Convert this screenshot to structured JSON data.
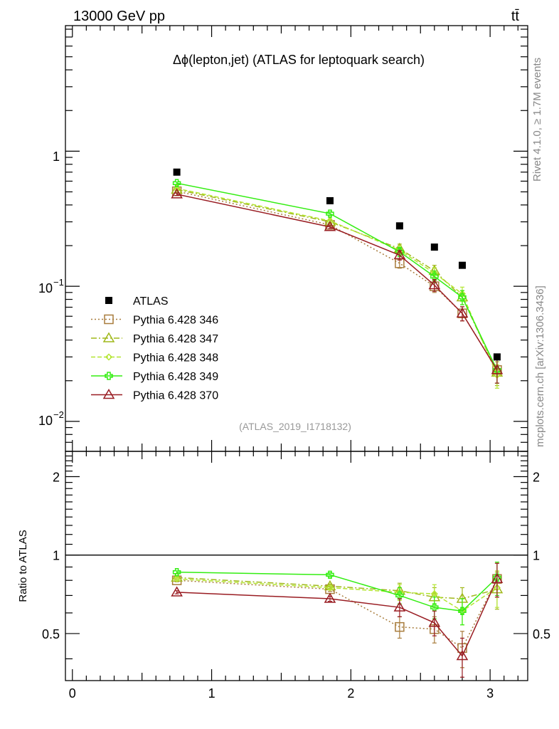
{
  "header": {
    "energy_label": "13000 GeV pp",
    "process_label": "tt̄"
  },
  "side_labels": {
    "rivet": "Rivet 4.1.0, ≥ 1.7M events",
    "site": "mcplots.cern.ch [arXiv:1306.3436]"
  },
  "chart_data": {
    "type": "line",
    "title": "Δϕ(lepton,jet) (ATLAS for leptoquark search)",
    "analysis_id": "(ATLAS_2019_I1718132)",
    "x": [
      0.75,
      1.85,
      2.35,
      2.6,
      2.8,
      3.05
    ],
    "xlim": [
      -0.05,
      3.27
    ],
    "x_ticks": [
      "0",
      "1",
      "2",
      "3"
    ],
    "main": {
      "yscale": "log",
      "ylim": [
        0.006,
        8.5
      ],
      "y_ticks": [
        {
          "value": 1,
          "label": "1"
        },
        {
          "value": 0.1,
          "label": "10",
          "exponent": "−1"
        },
        {
          "value": 0.01,
          "label": "10",
          "exponent": "−2"
        }
      ]
    },
    "ratio": {
      "ylabel": "Ratio to ATLAS",
      "ylim": [
        0.33,
        2.5
      ],
      "reference": 1,
      "y_ticks": [
        "0.5",
        "1",
        "2"
      ]
    },
    "data": {
      "name": "ATLAS",
      "values": [
        0.7,
        0.43,
        0.28,
        0.195,
        0.143,
        0.03
      ]
    },
    "series": [
      {
        "name": "Pythia 6.428 346",
        "color": "#a87c3c",
        "dash": "2,3",
        "marker": "square",
        "values": [
          0.505,
          0.285,
          0.148,
          0.1,
          0.063,
          0.024
        ],
        "ratio": [
          0.8,
          0.74,
          0.53,
          0.52,
          0.44,
          0.81
        ]
      },
      {
        "name": "Pythia 6.428 347",
        "color": "#a0b81a",
        "dash": "8,3,2,3",
        "marker": "triangle",
        "values": [
          0.52,
          0.3,
          0.19,
          0.13,
          0.083,
          0.023
        ],
        "ratio": [
          0.82,
          0.76,
          0.73,
          0.69,
          0.68,
          0.74
        ]
      },
      {
        "name": "Pythia 6.428 348",
        "color": "#b4e632",
        "dash": "6,3",
        "marker": "diamond",
        "values": [
          0.53,
          0.305,
          0.185,
          0.125,
          0.088,
          0.022
        ],
        "ratio": [
          0.81,
          0.75,
          0.72,
          0.71,
          0.61,
          0.75
        ]
      },
      {
        "name": "Pythia 6.428 349",
        "color": "#33ee11",
        "dash": "",
        "marker": "cross",
        "values": [
          0.58,
          0.345,
          0.18,
          0.118,
          0.083,
          0.024
        ],
        "ratio": [
          0.86,
          0.84,
          0.7,
          0.63,
          0.61,
          0.82
        ]
      },
      {
        "name": "Pythia 6.428 370",
        "color": "#991c22",
        "dash": "",
        "marker": "triangle",
        "values": [
          0.48,
          0.275,
          0.17,
          0.102,
          0.063,
          0.024
        ],
        "ratio": [
          0.72,
          0.68,
          0.63,
          0.55,
          0.41,
          0.81
        ]
      }
    ]
  }
}
